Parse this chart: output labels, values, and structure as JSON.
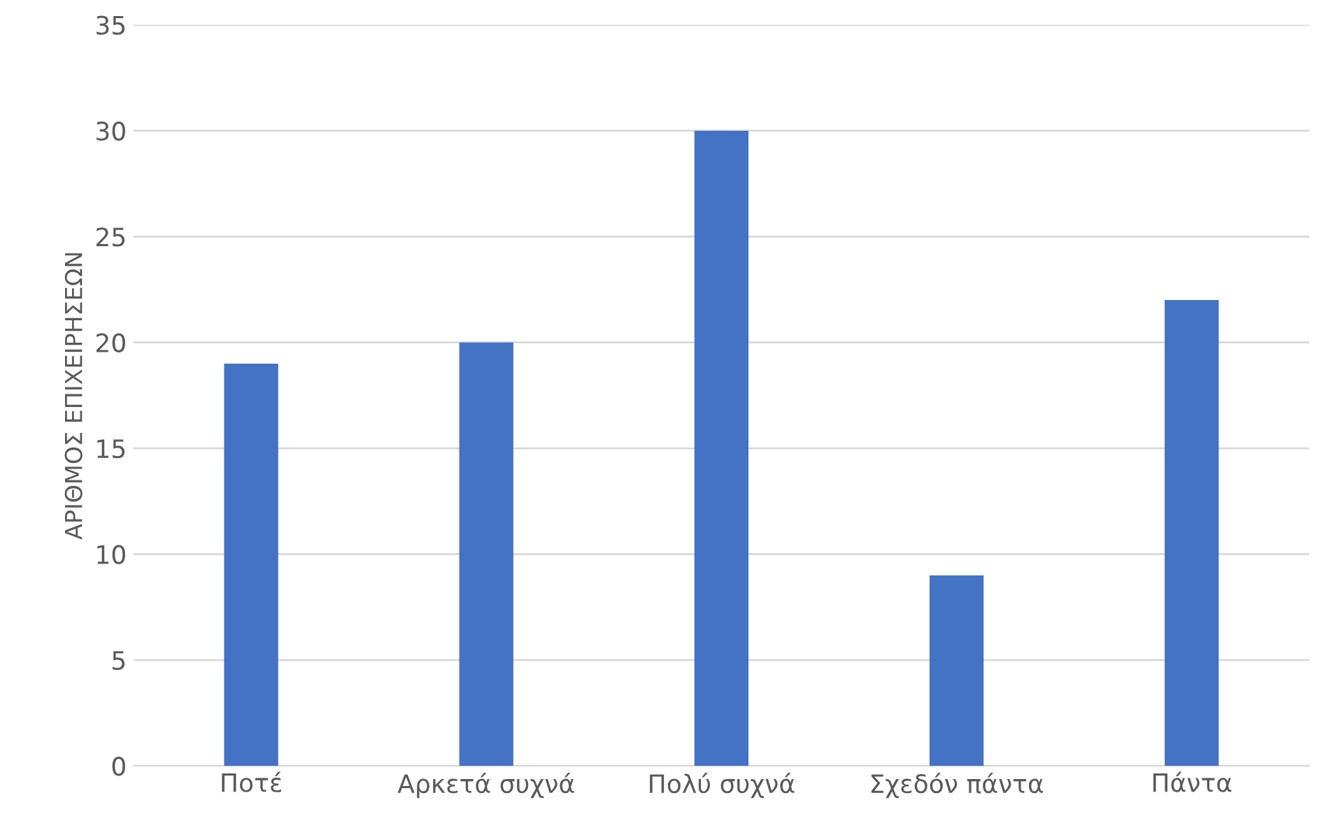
{
  "chart_data": {
    "type": "bar",
    "ylabel": "ΑΡΙΘΜΟΣ ΕΠΙΧΕΙΡΗΣΕΩΝ",
    "categories": [
      "Ποτέ",
      "Αρκετά συχνά",
      "Πολύ συχνά",
      "Σχεδόν πάντα",
      "Πάντα"
    ],
    "values": [
      19,
      20,
      30,
      9,
      22
    ],
    "color": "#4472c4",
    "ylim": [
      0,
      35
    ],
    "yticks": [
      0,
      5,
      10,
      15,
      20,
      25,
      30,
      35
    ],
    "grid": "y"
  }
}
